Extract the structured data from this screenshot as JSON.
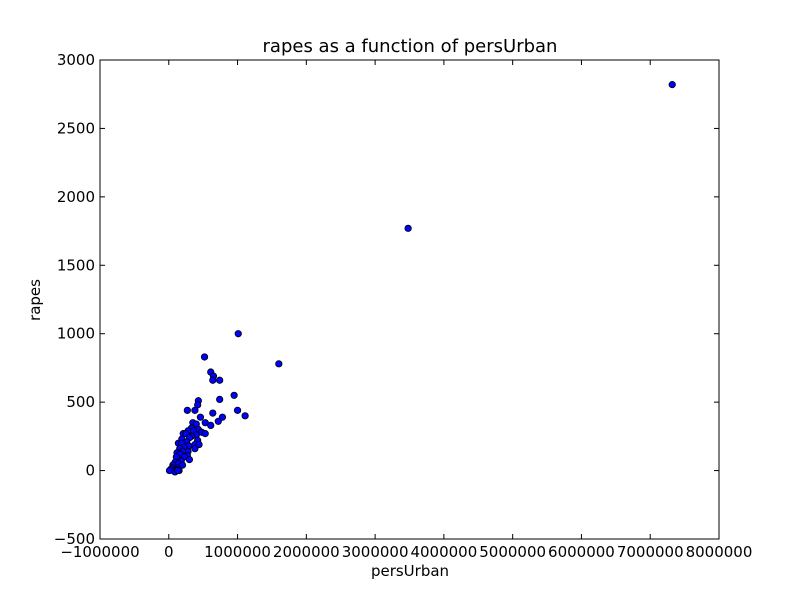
{
  "colors": {
    "marker_fill": "#0000ff",
    "marker_edge": "#000000",
    "axes": "#000000",
    "background": "#ffffff"
  },
  "chart_data": {
    "type": "scatter",
    "title": "rapes as a function of persUrban",
    "xlabel": "persUrban",
    "ylabel": "rapes",
    "xlim": [
      -1000000,
      8000000
    ],
    "ylim": [
      -500,
      3000
    ],
    "xticks": [
      -1000000,
      0,
      1000000,
      2000000,
      3000000,
      4000000,
      5000000,
      6000000,
      7000000,
      8000000
    ],
    "xtick_labels": [
      "−1000000",
      "0",
      "1000000",
      "2000000",
      "3000000",
      "4000000",
      "5000000",
      "6000000",
      "7000000",
      "8000000"
    ],
    "yticks": [
      -500,
      0,
      500,
      1000,
      1500,
      2000,
      2500,
      3000
    ],
    "ytick_labels": [
      "−500",
      "0",
      "500",
      "1000",
      "1500",
      "2000",
      "2500",
      "3000"
    ],
    "grid": false,
    "points": [
      [
        7320000,
        2820
      ],
      [
        3480000,
        1770
      ],
      [
        1600000,
        780
      ],
      [
        1010000,
        1000
      ],
      [
        520000,
        830
      ],
      [
        610000,
        720
      ],
      [
        650000,
        690
      ],
      [
        640000,
        660
      ],
      [
        740000,
        660
      ],
      [
        950000,
        550
      ],
      [
        740000,
        520
      ],
      [
        430000,
        510
      ],
      [
        420000,
        480
      ],
      [
        270000,
        440
      ],
      [
        1000000,
        440
      ],
      [
        380000,
        440
      ],
      [
        640000,
        420
      ],
      [
        1110000,
        400
      ],
      [
        460000,
        390
      ],
      [
        780000,
        390
      ],
      [
        720000,
        360
      ],
      [
        350000,
        350
      ],
      [
        530000,
        350
      ],
      [
        400000,
        340
      ],
      [
        610000,
        330
      ],
      [
        330000,
        310
      ],
      [
        280000,
        290
      ],
      [
        430000,
        300
      ],
      [
        360000,
        290
      ],
      [
        480000,
        280
      ],
      [
        530000,
        270
      ],
      [
        210000,
        270
      ],
      [
        250000,
        270
      ],
      [
        400000,
        260
      ],
      [
        330000,
        250
      ],
      [
        300000,
        240
      ],
      [
        190000,
        230
      ],
      [
        420000,
        220
      ],
      [
        260000,
        210
      ],
      [
        140000,
        200
      ],
      [
        190000,
        200
      ],
      [
        380000,
        190
      ],
      [
        440000,
        190
      ],
      [
        290000,
        180
      ],
      [
        220000,
        170
      ],
      [
        160000,
        160
      ],
      [
        380000,
        160
      ],
      [
        280000,
        140
      ],
      [
        200000,
        140
      ],
      [
        120000,
        130
      ],
      [
        160000,
        120
      ],
      [
        270000,
        110
      ],
      [
        230000,
        100
      ],
      [
        110000,
        100
      ],
      [
        300000,
        80
      ],
      [
        180000,
        70
      ],
      [
        90000,
        60
      ],
      [
        140000,
        50
      ],
      [
        200000,
        40
      ],
      [
        60000,
        40
      ],
      [
        120000,
        20
      ],
      [
        100000,
        10
      ],
      [
        50000,
        20
      ],
      [
        150000,
        0
      ],
      [
        70000,
        0
      ],
      [
        30000,
        10
      ],
      [
        10000,
        0
      ],
      [
        90000,
        -10
      ],
      [
        130000,
        0
      ]
    ]
  }
}
